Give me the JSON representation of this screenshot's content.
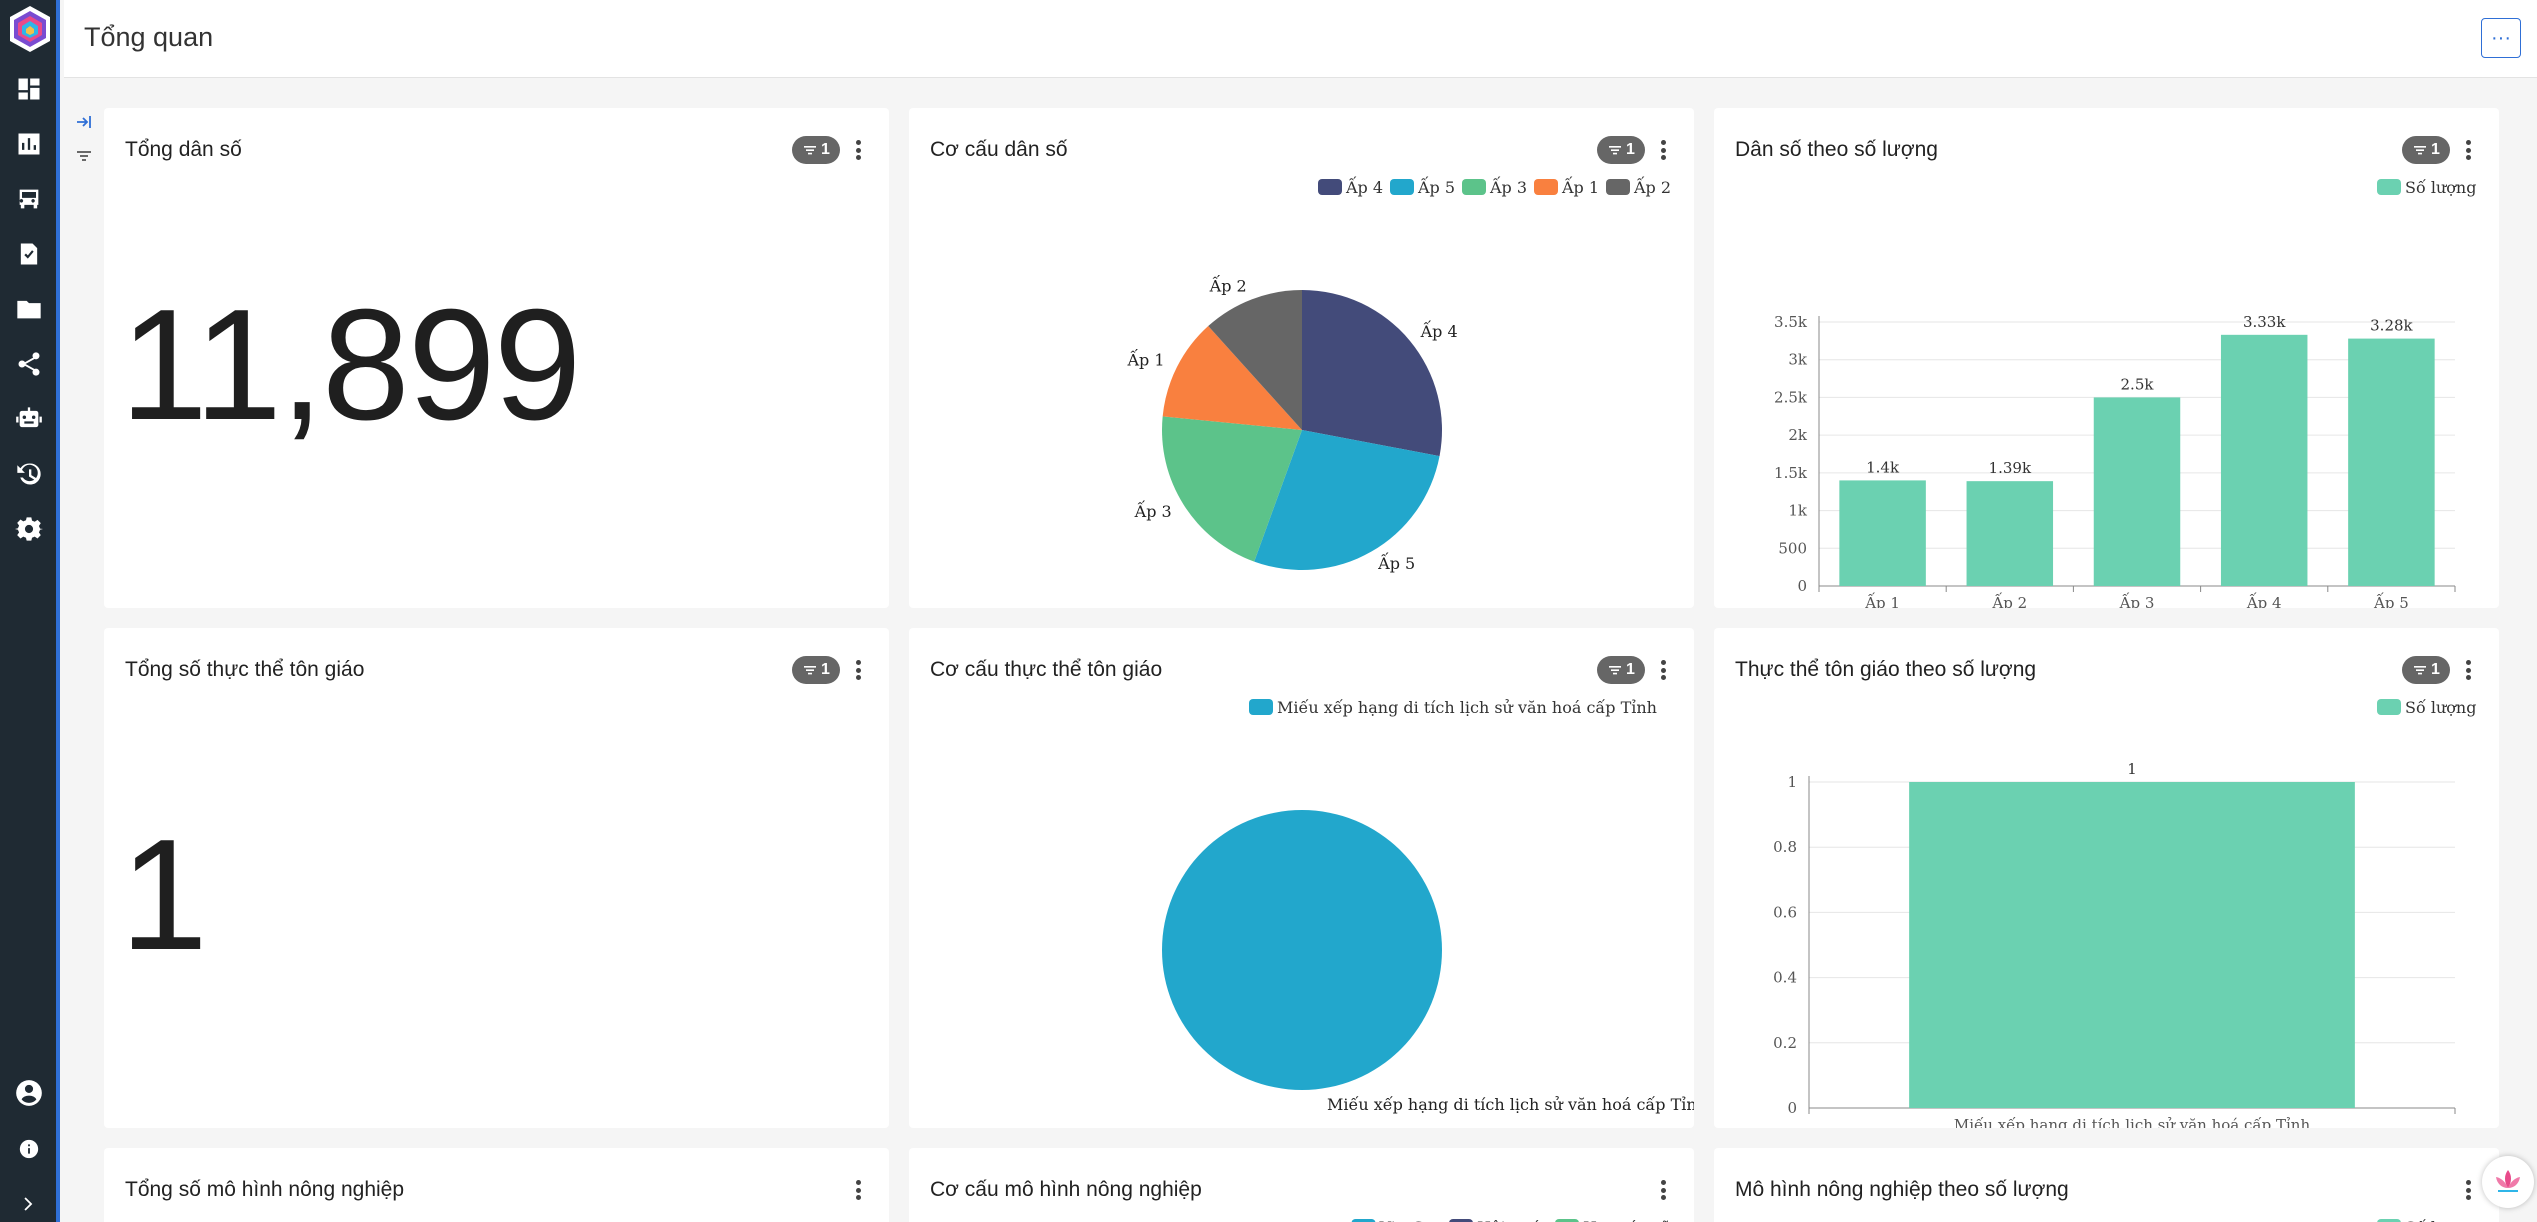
{
  "page": {
    "title": "Tổng quan",
    "more_label": "···"
  },
  "sidebar": {
    "items": [
      {
        "icon": "dashboard-icon"
      },
      {
        "icon": "bar-chart-icon"
      },
      {
        "icon": "bus-icon"
      },
      {
        "icon": "clipboard-check-icon"
      },
      {
        "icon": "folder-icon"
      },
      {
        "icon": "share-icon"
      },
      {
        "icon": "robot-icon"
      },
      {
        "icon": "history-icon"
      },
      {
        "icon": "settings-icon"
      }
    ],
    "bottom": [
      {
        "icon": "user-icon"
      },
      {
        "icon": "info-icon"
      },
      {
        "icon": "expand-icon"
      }
    ]
  },
  "colors": {
    "accent": "#2f6fd6",
    "bar": "#6bd1b1",
    "sidebar": "#1f2a33"
  },
  "cards": {
    "pop_total": {
      "title": "Tổng dân số",
      "filter_count": "1",
      "value": "11,899"
    },
    "pop_structure": {
      "title": "Cơ cấu dân số",
      "filter_count": "1"
    },
    "pop_by_count": {
      "title": "Dân số theo số lượng",
      "filter_count": "1"
    },
    "rel_total": {
      "title": "Tổng số thực thể tôn giáo",
      "filter_count": "1",
      "value": "1"
    },
    "rel_structure": {
      "title": "Cơ cấu thực thể tôn giáo",
      "filter_count": "1"
    },
    "rel_by_count": {
      "title": "Thực thể tôn giáo theo số lượng",
      "filter_count": "1"
    },
    "agri_total": {
      "title": "Tổng số mô hình nông nghiệp"
    },
    "agri_structure": {
      "title": "Cơ cấu mô hình nông nghiệp"
    },
    "agri_by_count": {
      "title": "Mô hình nông nghiệp theo số lượng"
    }
  },
  "chart_data": [
    {
      "id": "pop_pie",
      "type": "pie",
      "legend": [
        "Ấp 4",
        "Ấp 5",
        "Ấp 3",
        "Ấp 1",
        "Ấp 2"
      ],
      "labels": [
        "Ấp 4",
        "Ấp 5",
        "Ấp 3",
        "Ấp 1",
        "Ấp 2"
      ],
      "values": [
        3330,
        3280,
        2500,
        1400,
        1390
      ],
      "colors": [
        "#434b7a",
        "#22a7cc",
        "#5cc38a",
        "#f9803f",
        "#666666"
      ]
    },
    {
      "id": "pop_bar",
      "type": "bar",
      "legend": "Số lượng",
      "categories": [
        "Ấp 1",
        "Ấp 2",
        "Ấp 3",
        "Ấp 4",
        "Ấp 5"
      ],
      "values": [
        1400,
        1390,
        2500,
        3330,
        3280
      ],
      "data_labels": [
        "1.4k",
        "1.39k",
        "2.5k",
        "3.33k",
        "3.28k"
      ],
      "yticks": [
        "0",
        "500",
        "1k",
        "1.5k",
        "2k",
        "2.5k",
        "3k",
        "3.5k"
      ],
      "ylim": [
        0,
        3500
      ]
    },
    {
      "id": "rel_pie",
      "type": "pie",
      "legend": [
        "Miếu xếp hạng di tích lịch sử văn hoá cấp Tỉnh"
      ],
      "labels": [
        "Miếu xếp hạng di tích lịch sử văn hoá cấp Tỉnh"
      ],
      "values": [
        1
      ],
      "colors": [
        "#22a7cc"
      ]
    },
    {
      "id": "rel_bar",
      "type": "bar",
      "legend": "Số lượng",
      "categories": [
        "Miếu xếp hạng di tích lịch sử văn hoá cấp Tỉnh"
      ],
      "values": [
        1
      ],
      "data_labels": [
        "1"
      ],
      "yticks": [
        "0",
        "0.2",
        "0.4",
        "0.6",
        "0.8",
        "1"
      ],
      "ylim": [
        0,
        1
      ]
    },
    {
      "id": "agri_pie_legend",
      "type": "pie",
      "legend": [
        "VietGap",
        "Hội quán",
        "Hợp tác xã"
      ],
      "colors": [
        "#22a7cc",
        "#434b7a",
        "#5cc38a"
      ]
    },
    {
      "id": "agri_bar_legend",
      "type": "bar",
      "legend": "Số lượng"
    }
  ]
}
